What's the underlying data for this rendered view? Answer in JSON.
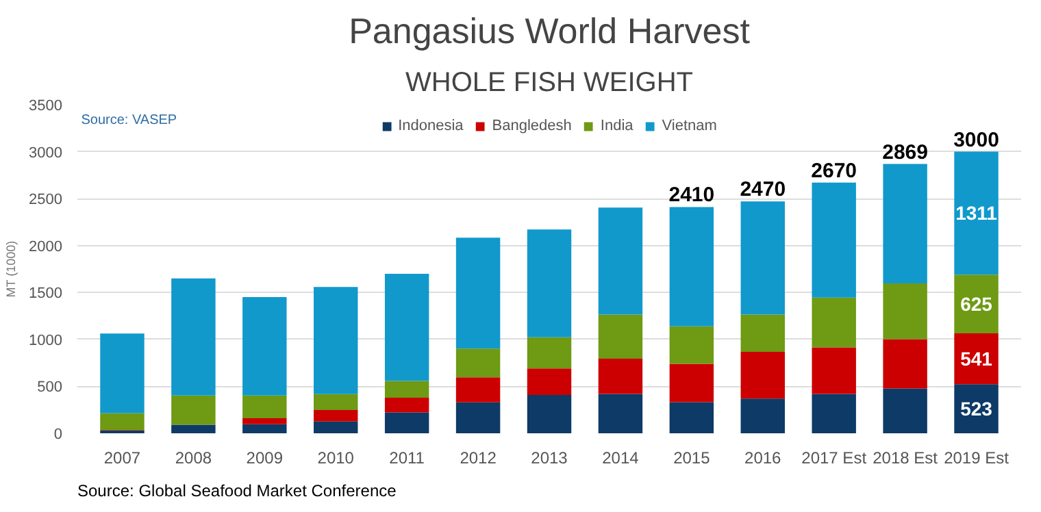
{
  "chart_data": {
    "type": "bar",
    "stacked": true,
    "title": "Pangasius World Harvest",
    "subtitle": "WHOLE FISH WEIGHT",
    "ylabel": "MT (1000)",
    "categories": [
      "2007",
      "2008",
      "2009",
      "2010",
      "2011",
      "2012",
      "2013",
      "2014",
      "2015",
      "2016",
      "2017 Est",
      "2018 Est",
      "2019 Est"
    ],
    "series": [
      {
        "name": "Indonesia",
        "color": "#0d3a66",
        "values": [
          30,
          92,
          97,
          126,
          223,
          330,
          409,
          419,
          331,
          370,
          419,
          477,
          523
        ],
        "value_labels": [
          null,
          null,
          null,
          null,
          null,
          null,
          null,
          null,
          null,
          null,
          null,
          null,
          "523"
        ]
      },
      {
        "name": "Bangledesh",
        "color": "#cc0000",
        "values": [
          5,
          0,
          63,
          122,
          156,
          267,
          282,
          375,
          409,
          497,
          496,
          526,
          541
        ],
        "value_labels": [
          null,
          null,
          null,
          null,
          null,
          null,
          null,
          null,
          null,
          null,
          null,
          null,
          "541"
        ]
      },
      {
        "name": "India",
        "color": "#6e9a14",
        "values": [
          179,
          311,
          243,
          169,
          179,
          306,
          331,
          472,
          399,
          399,
          531,
          594,
          625
        ],
        "value_labels": [
          null,
          null,
          null,
          null,
          null,
          null,
          null,
          null,
          null,
          null,
          null,
          null,
          "625"
        ]
      },
      {
        "name": "Vietnam",
        "color": "#1199cc",
        "values": [
          849,
          1247,
          1048,
          1141,
          1141,
          1180,
          1149,
          1139,
          1271,
          1204,
          1224,
          1272,
          1311
        ],
        "value_labels": [
          null,
          null,
          null,
          null,
          null,
          null,
          null,
          null,
          null,
          null,
          null,
          null,
          "1311"
        ]
      }
    ],
    "totals": [
      null,
      null,
      null,
      null,
      null,
      null,
      null,
      null,
      "2410",
      "2470",
      "2670",
      "2869",
      "3000"
    ],
    "ylim": [
      0,
      3500
    ],
    "yticks": [
      0,
      500,
      1000,
      1500,
      2000,
      2500,
      3000,
      3500
    ],
    "grid": "y",
    "legend": "top",
    "annotations": [
      "Source: VASEP",
      "Source: Global Seafood Market Conference"
    ]
  }
}
